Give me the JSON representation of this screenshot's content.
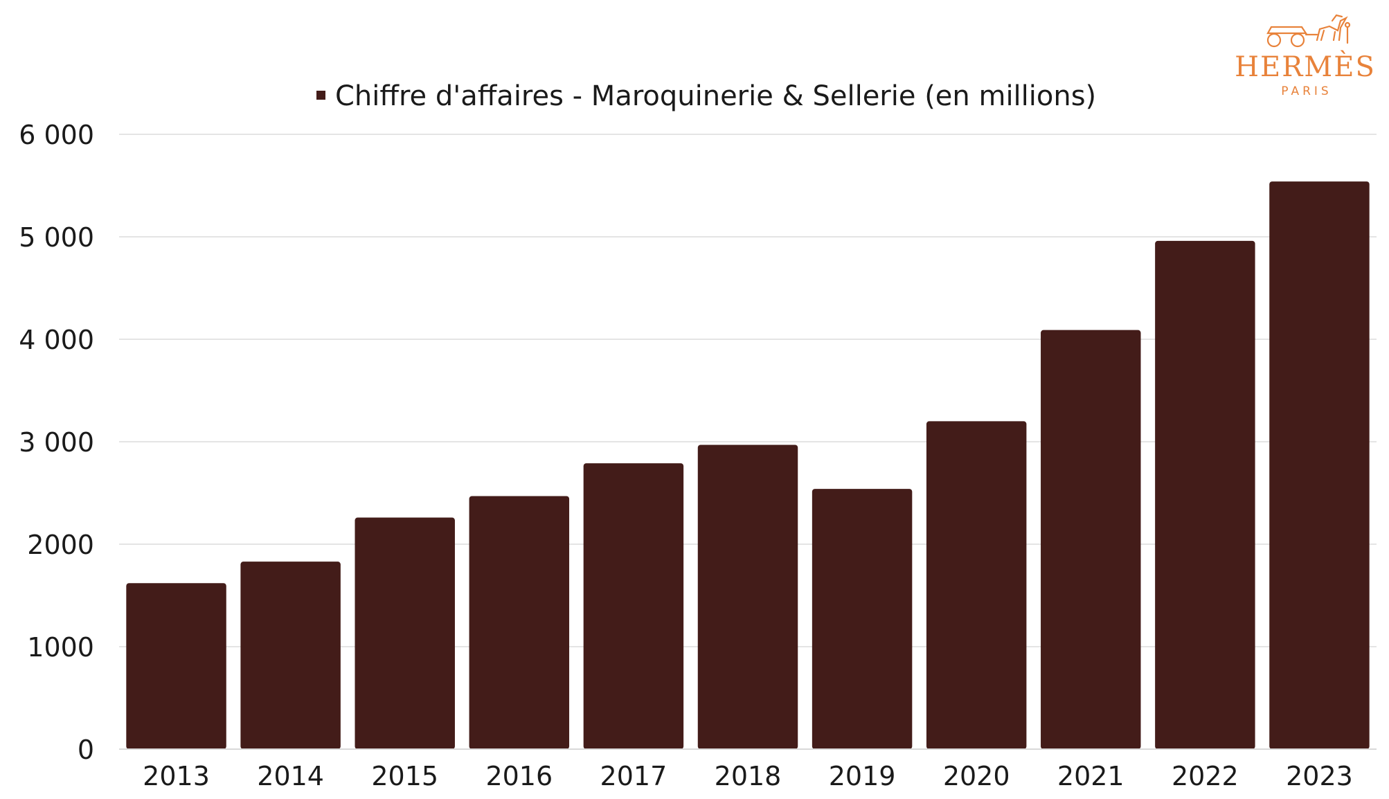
{
  "logo": {
    "brand": "HERMÈS",
    "city": "PARIS",
    "color": "#e8823a"
  },
  "chart_data": {
    "type": "bar",
    "categories": [
      "2013",
      "2014",
      "2015",
      "2016",
      "2017",
      "2018",
      "2019",
      "2020",
      "2021",
      "2022",
      "2023"
    ],
    "series": [
      {
        "name": "Chiffre d'affaires - Maroquinerie & Sellerie (en millions)",
        "color": "#431c19",
        "values": [
          1620,
          1830,
          2260,
          2470,
          2790,
          2970,
          2540,
          3200,
          4090,
          4960,
          5540
        ]
      }
    ],
    "ylim": [
      0,
      6000
    ],
    "yticks": [
      0,
      1000,
      2000,
      3000,
      4000,
      5000,
      6000
    ],
    "ytick_labels": [
      "0",
      "1000",
      "2000",
      "3 000",
      "4 000",
      "5 000",
      "6 000"
    ],
    "grid": true,
    "legend_position": "top"
  }
}
